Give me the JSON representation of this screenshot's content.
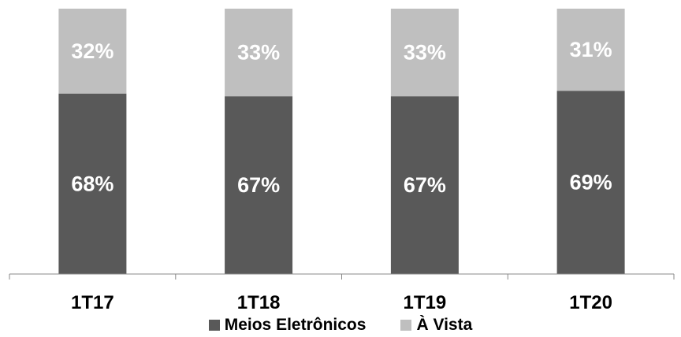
{
  "chart_data": {
    "type": "bar",
    "stacked": true,
    "categories": [
      "1T17",
      "1T18",
      "1T19",
      "1T20"
    ],
    "series": [
      {
        "name": "Meios Eletrônicos",
        "values": [
          68,
          67,
          67,
          69
        ],
        "labels": [
          "68%",
          "67%",
          "67%",
          "69%"
        ],
        "color": "#595959"
      },
      {
        "name": "À Vista",
        "values": [
          32,
          33,
          33,
          31
        ],
        "labels": [
          "32%",
          "33%",
          "33%",
          "31%"
        ],
        "color": "#bfbfbf"
      }
    ],
    "ylim": [
      0,
      100
    ],
    "grid": false,
    "legend_position": "bottom"
  }
}
